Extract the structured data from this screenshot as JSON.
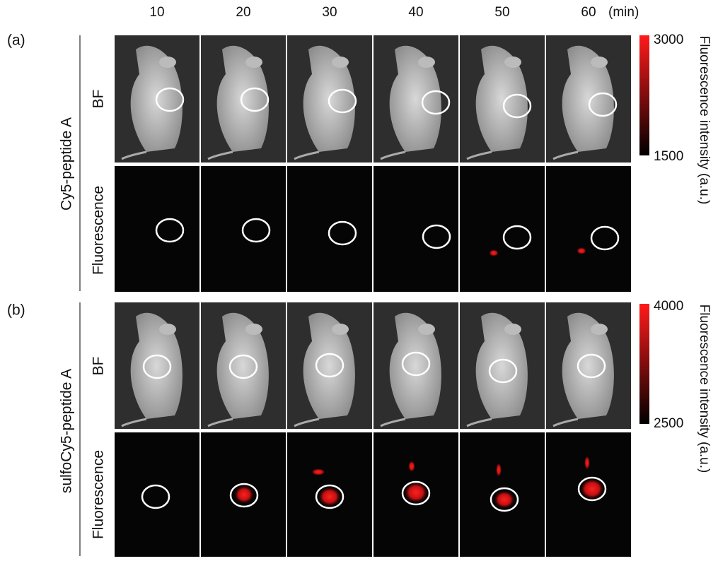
{
  "time_labels": [
    "10",
    "20",
    "30",
    "40",
    "50",
    "60"
  ],
  "time_unit": "(min)",
  "panels": [
    {
      "label": "(a)",
      "probe": "Cy5-peptide A",
      "rows": [
        "BF",
        "Fluorescence"
      ],
      "colorbar": {
        "max": "3000",
        "min": "1500",
        "title": "Fluorescence intensity (a.u.)"
      }
    },
    {
      "label": "(b)",
      "probe": "sulfoCy5-peptide A",
      "rows": [
        "BF",
        "Fluorescence"
      ],
      "colorbar": {
        "max": "4000",
        "min": "2500",
        "title": "Fluorescence intensity (a.u.)"
      }
    }
  ]
}
